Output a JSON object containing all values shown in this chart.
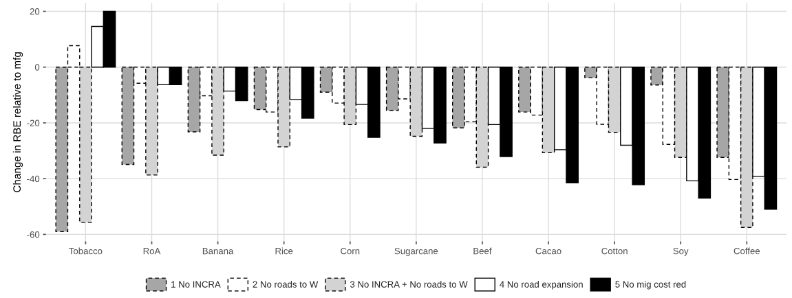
{
  "chart_data": {
    "type": "bar",
    "ylabel": "Change in RBE relative to mfg",
    "categories": [
      "Tobacco",
      "RoA",
      "Banana",
      "Rice",
      "Corn",
      "Sugarcane",
      "Beef",
      "Cacao",
      "Cotton",
      "Soy",
      "Coffee"
    ],
    "series": [
      {
        "name": "1 No INCRA",
        "color": "#a6a6a6",
        "line_style": "dashed",
        "values": [
          -59.0,
          -34.9,
          -23.2,
          -15.2,
          -9.0,
          -15.5,
          -21.8,
          -16.1,
          -3.8,
          -6.4,
          -32.4
        ]
      },
      {
        "name": "2 No roads to W",
        "color": "#ffffff",
        "line_style": "dashed",
        "values": [
          7.7,
          -5.8,
          -10.3,
          -16.1,
          -12.9,
          -11.4,
          -19.6,
          -17.2,
          -20.5,
          -27.7,
          -40.3
        ]
      },
      {
        "name": "3 No INCRA + No roads to W",
        "color": "#d3d3d3",
        "line_style": "dashed",
        "values": [
          -55.7,
          -38.7,
          -31.6,
          -28.6,
          -20.6,
          -24.8,
          -35.9,
          -30.7,
          -23.4,
          -32.4,
          -57.5
        ]
      },
      {
        "name": "4 No road expansion",
        "color": "#ffffff",
        "line_style": "solid",
        "values": [
          14.6,
          -6.3,
          -8.6,
          -11.6,
          -13.4,
          -22.0,
          -20.6,
          -29.6,
          -28.0,
          -40.8,
          -39.2
        ]
      },
      {
        "name": "5 No mig cost red",
        "color": "#000000",
        "line_style": "solid",
        "values": [
          20.0,
          -6.3,
          -12.0,
          -18.3,
          -25.2,
          -27.2,
          -32.1,
          -41.5,
          -42.2,
          -47.0,
          -51.0
        ]
      }
    ],
    "ylim": [
      -62.5,
      23
    ],
    "yticks": [
      {
        "value": -60,
        "label": "-60"
      },
      {
        "value": -40,
        "label": "-40"
      },
      {
        "value": -20,
        "label": "-20"
      },
      0,
      20
    ],
    "grid": true,
    "legend": "bottom"
  }
}
